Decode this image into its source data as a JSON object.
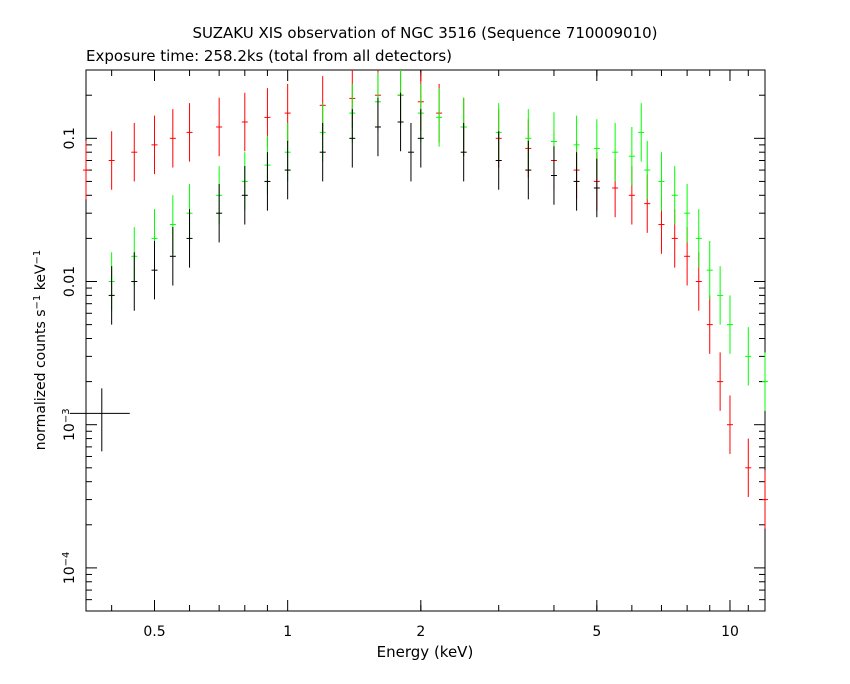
{
  "chart_data": {
    "type": "scatter",
    "title": "SUZAKU XIS observation of NGC 3516 (Sequence 710009010)",
    "subtitle": "Exposure time: 258.2ks (total from all detectors)",
    "xlabel": "Energy (keV)",
    "ylabel": "normalized counts s^-1 keV^-1",
    "x_scale": "log",
    "y_scale": "log",
    "xlim": [
      0.35,
      12
    ],
    "ylim": [
      5e-05,
      0.3
    ],
    "x_ticks": [
      {
        "value": 0.5,
        "label": "0.5"
      },
      {
        "value": 1,
        "label": "1"
      },
      {
        "value": 2,
        "label": "2"
      },
      {
        "value": 5,
        "label": "5"
      },
      {
        "value": 10,
        "label": "10"
      }
    ],
    "y_ticks": [
      {
        "value": 0.1,
        "label": "0.1"
      },
      {
        "value": 0.01,
        "label": "0.01"
      },
      {
        "value": 0.001,
        "label": "10^-3"
      },
      {
        "value": 0.0001,
        "label": "10^-4"
      }
    ],
    "series": [
      {
        "color": "#ff0000",
        "x": [
          0.35,
          0.4,
          0.45,
          0.5,
          0.55,
          0.6,
          0.7,
          0.8,
          0.9,
          1.0,
          1.2,
          1.4,
          1.6,
          1.8,
          2.0,
          2.2,
          2.5,
          3.0,
          3.5,
          4.0,
          4.5,
          5.0,
          5.5,
          6.0,
          6.5,
          7.0,
          7.5,
          8.0,
          8.5,
          9.0,
          9.5,
          10.0,
          11.0,
          12.0
        ],
        "y": [
          0.06,
          0.07,
          0.08,
          0.09,
          0.1,
          0.11,
          0.12,
          0.13,
          0.14,
          0.15,
          0.17,
          0.19,
          0.2,
          0.2,
          0.18,
          0.15,
          0.12,
          0.1,
          0.085,
          0.07,
          0.06,
          0.05,
          0.045,
          0.04,
          0.035,
          0.025,
          0.02,
          0.015,
          0.01,
          0.005,
          0.002,
          0.001,
          0.0005,
          0.0003
        ]
      },
      {
        "color": "#00ff00",
        "x": [
          0.4,
          0.45,
          0.5,
          0.55,
          0.6,
          0.7,
          0.8,
          0.9,
          1.0,
          1.2,
          1.4,
          1.6,
          1.8,
          2.0,
          2.2,
          2.5,
          3.0,
          3.5,
          4.0,
          4.5,
          5.0,
          5.5,
          6.0,
          6.3,
          6.5,
          7.0,
          7.5,
          8.0,
          8.5,
          9.0,
          9.5,
          10.0,
          11.0,
          12.0
        ],
        "y": [
          0.01,
          0.015,
          0.02,
          0.025,
          0.03,
          0.04,
          0.05,
          0.065,
          0.08,
          0.11,
          0.15,
          0.18,
          0.2,
          0.15,
          0.14,
          0.12,
          0.11,
          0.1,
          0.095,
          0.09,
          0.085,
          0.08,
          0.075,
          0.11,
          0.06,
          0.05,
          0.04,
          0.03,
          0.02,
          0.012,
          0.008,
          0.005,
          0.003,
          0.002
        ]
      },
      {
        "color": "#000000",
        "x": [
          0.4,
          0.45,
          0.5,
          0.55,
          0.6,
          0.7,
          0.8,
          0.9,
          1.0,
          1.2,
          1.4,
          1.6,
          1.8,
          1.9,
          2.0,
          2.5,
          3.0,
          3.5,
          4.0,
          4.5,
          5.0
        ],
        "y": [
          0.008,
          0.01,
          0.012,
          0.015,
          0.02,
          0.03,
          0.04,
          0.05,
          0.06,
          0.08,
          0.1,
          0.12,
          0.13,
          0.08,
          0.1,
          0.08,
          0.07,
          0.06,
          0.055,
          0.05,
          0.045
        ]
      }
    ],
    "annotations": [
      {
        "type": "error_bar",
        "label": "sample error cross",
        "x": 0.38,
        "y": 0.0012
      }
    ]
  }
}
